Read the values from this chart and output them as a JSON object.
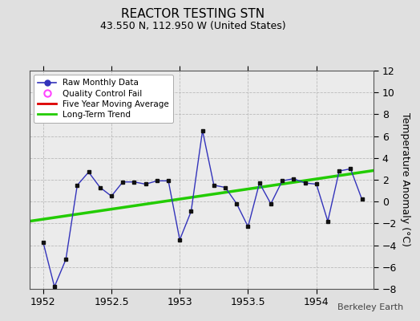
{
  "title": "REACTOR TESTING STN",
  "subtitle": "43.550 N, 112.950 W (United States)",
  "ylabel": "Temperature Anomaly (°C)",
  "watermark": "Berkeley Earth",
  "ylim": [
    -8,
    12
  ],
  "yticks": [
    -8,
    -6,
    -4,
    -2,
    0,
    2,
    4,
    6,
    8,
    10,
    12
  ],
  "xlim": [
    1951.9,
    1954.42
  ],
  "xticks": [
    1952.0,
    1952.5,
    1953.0,
    1953.5,
    1954.0
  ],
  "bg_color": "#e0e0e0",
  "plot_bg_color": "#ebebeb",
  "raw_x": [
    1952.0,
    1952.0833,
    1952.1667,
    1952.25,
    1952.3333,
    1952.4167,
    1952.5,
    1952.5833,
    1952.6667,
    1952.75,
    1952.8333,
    1952.9167,
    1953.0,
    1953.0833,
    1953.1667,
    1953.25,
    1953.3333,
    1953.4167,
    1953.5,
    1953.5833,
    1953.6667,
    1953.75,
    1953.8333,
    1953.9167,
    1954.0,
    1954.0833,
    1954.1667,
    1954.25,
    1954.3333
  ],
  "raw_y": [
    -3.7,
    -7.8,
    -5.3,
    1.5,
    2.7,
    1.3,
    0.5,
    1.8,
    1.8,
    1.6,
    1.9,
    1.9,
    -3.5,
    -0.9,
    6.5,
    1.5,
    1.3,
    -0.2,
    -2.3,
    1.7,
    -0.2,
    1.9,
    2.1,
    1.7,
    1.6,
    -1.8,
    2.8,
    3.0,
    0.2
  ],
  "trend_x": [
    1951.9,
    1954.42
  ],
  "trend_y": [
    -1.8,
    2.85
  ],
  "raw_line_color": "#3333bb",
  "raw_marker_color": "#111111",
  "trend_color": "#22cc00",
  "mavg_color": "#dd0000",
  "qc_color": "#ff44ff",
  "legend_labels": [
    "Raw Monthly Data",
    "Quality Control Fail",
    "Five Year Moving Average",
    "Long-Term Trend"
  ],
  "title_fontsize": 11,
  "subtitle_fontsize": 9,
  "tick_fontsize": 9,
  "ylabel_fontsize": 9
}
